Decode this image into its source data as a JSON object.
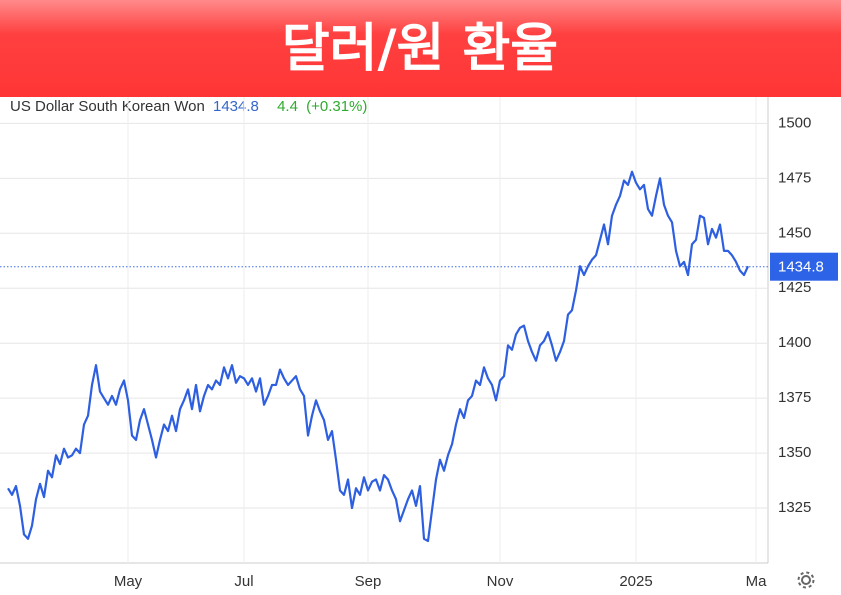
{
  "chart_data": {
    "type": "line",
    "title": "달러/원 환율",
    "subtitle": "US Dollar South Korean Won",
    "current": 1434.8,
    "change": 4.4,
    "change_label": "(+0.31%)",
    "color": "#2d5fe0",
    "grid": true,
    "ylim": [
      1300,
      1512
    ],
    "yticks": [
      1325,
      1350,
      1375,
      1400,
      1425,
      1450,
      1475,
      1500
    ],
    "categories": [
      null,
      null,
      null,
      null,
      null,
      null,
      null,
      null,
      null,
      null,
      null,
      null,
      null,
      null,
      null,
      null,
      null,
      null,
      null,
      null,
      null,
      null,
      null,
      null,
      null,
      null,
      null,
      null,
      null,
      null,
      "May",
      null,
      null,
      null,
      null,
      null,
      null,
      null,
      null,
      null,
      null,
      null,
      null,
      null,
      null,
      null,
      null,
      null,
      null,
      null,
      null,
      null,
      null,
      null,
      null,
      null,
      null,
      null,
      null,
      "Jul",
      null,
      null,
      null,
      null,
      null,
      null,
      null,
      null,
      null,
      null,
      null,
      null,
      null,
      null,
      null,
      null,
      null,
      null,
      null,
      null,
      null,
      null,
      null,
      null,
      null,
      null,
      null,
      null,
      null,
      null,
      "Sep",
      null,
      null,
      null,
      null,
      null,
      null,
      null,
      null,
      null,
      null,
      null,
      null,
      null,
      null,
      null,
      null,
      null,
      null,
      null,
      null,
      null,
      null,
      null,
      null,
      null,
      null,
      null,
      null,
      null,
      null,
      null,
      null,
      "Nov",
      null,
      null,
      null,
      null,
      null,
      null,
      null,
      null,
      null,
      null,
      null,
      null,
      null,
      null,
      null,
      null,
      null,
      null,
      null,
      null,
      null,
      null,
      null,
      null,
      null,
      null,
      null,
      null,
      null,
      null,
      null,
      null,
      null,
      "2025",
      null,
      null,
      null,
      null,
      null,
      null,
      null,
      null,
      null,
      null,
      null,
      null,
      null,
      null,
      null,
      null,
      null,
      null,
      null,
      null,
      null,
      null,
      null,
      null,
      null,
      null,
      null,
      null,
      null,
      "Ma"
    ],
    "values": [
      1334,
      1331,
      1335,
      1326,
      1313,
      1311,
      1317,
      1329,
      1336,
      1330,
      1342,
      1339,
      1349,
      1345,
      1352,
      1348,
      1349,
      1352,
      1350,
      1363,
      1367,
      1381,
      1390,
      1378,
      1375,
      1372,
      1376,
      1372,
      1379,
      1383,
      1374,
      1358,
      1356,
      1365,
      1370,
      1363,
      1356,
      1348,
      1356,
      1363,
      1360,
      1367,
      1360,
      1370,
      1374,
      1379,
      1370,
      1381,
      1369,
      1376,
      1381,
      1379,
      1383,
      1381,
      1389,
      1384,
      1390,
      1382,
      1385,
      1384,
      1381,
      1384,
      1378,
      1384,
      1372,
      1376,
      1381,
      1381,
      1388,
      1384,
      1381,
      1383,
      1385,
      1379,
      1376,
      1358,
      1367,
      1374,
      1369,
      1365,
      1356,
      1360,
      1347,
      1333,
      1331,
      1338,
      1325,
      1334,
      1331,
      1339,
      1333,
      1337,
      1338,
      1333,
      1340,
      1338,
      1333,
      1329,
      1319,
      1324,
      1329,
      1333,
      1326,
      1335,
      1311,
      1310,
      1324,
      1338,
      1347,
      1342,
      1349,
      1354,
      1363,
      1370,
      1366,
      1374,
      1376,
      1383,
      1381,
      1389,
      1384,
      1381,
      1374,
      1383,
      1385,
      1399,
      1397,
      1404,
      1407,
      1408,
      1401,
      1396,
      1392,
      1399,
      1401,
      1405,
      1399,
      1392,
      1396,
      1401,
      1413,
      1415,
      1424,
      1435,
      1431,
      1435,
      1438,
      1440,
      1447,
      1454,
      1445,
      1458,
      1463,
      1467,
      1474,
      1472,
      1478,
      1473,
      1470,
      1472,
      1461,
      1458,
      1467,
      1475,
      1463,
      1458,
      1455,
      1442,
      1435,
      1437,
      1431,
      1445,
      1447,
      1458,
      1457,
      1445,
      1452,
      1448,
      1454,
      1442,
      1442,
      1440,
      1437,
      1433,
      1431,
      1435,
      null,
      null
    ]
  }
}
